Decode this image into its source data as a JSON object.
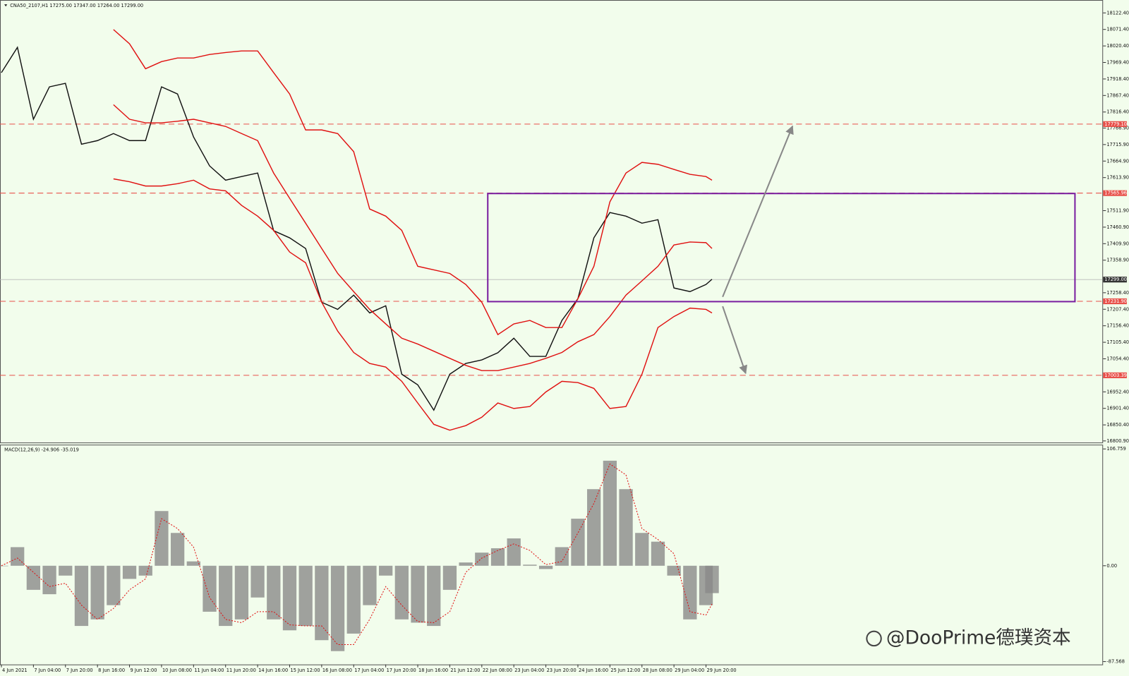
{
  "chart_data": [
    {
      "type": "line",
      "title": "CNA50_2107,H1  17275.00 17347.00 17264.00 17299.00",
      "x": [
        0,
        8,
        16,
        24,
        32,
        40,
        48,
        56,
        64,
        72,
        80,
        88,
        96,
        104,
        112,
        120,
        128,
        136,
        144,
        152,
        160,
        168,
        176,
        184,
        192,
        200,
        208,
        216,
        224,
        232,
        240,
        248,
        256,
        264,
        272,
        280,
        288,
        296,
        304,
        312,
        320,
        328,
        336,
        344,
        352,
        355
      ],
      "xlim": [
        -0.7,
        550
      ],
      "ylim": [
        16796,
        18160
      ],
      "yticks": [
        {
          "value": 18122.4,
          "label": "18122.40"
        },
        {
          "value": 18071.4,
          "label": "18071.40"
        },
        {
          "value": 18020.4,
          "label": "18020.40"
        },
        {
          "value": 17969.4,
          "label": "17969.40"
        },
        {
          "value": 17918.4,
          "label": "17918.40"
        },
        {
          "value": 17867.4,
          "label": "17867.40"
        },
        {
          "value": 17816.4,
          "label": "17816.40"
        },
        {
          "value": 17766.9,
          "label": "17766.90"
        },
        {
          "value": 17715.9,
          "label": "17715.90"
        },
        {
          "value": 17664.9,
          "label": "17664.90"
        },
        {
          "value": 17613.9,
          "label": "17613.90"
        },
        {
          "value": 17511.9,
          "label": "17511.90"
        },
        {
          "value": 17460.9,
          "label": "17460.90"
        },
        {
          "value": 17409.9,
          "label": "17409.90"
        },
        {
          "value": 17358.9,
          "label": "17358.90"
        },
        {
          "value": 17258.4,
          "label": "17258.40"
        },
        {
          "value": 17207.4,
          "label": "17207.40"
        },
        {
          "value": 17156.4,
          "label": "17156.40"
        },
        {
          "value": 17105.4,
          "label": "17105.40"
        },
        {
          "value": 17054.4,
          "label": "17054.40"
        },
        {
          "value": 16952.4,
          "label": "16952.40"
        },
        {
          "value": 16901.4,
          "label": "16901.40"
        },
        {
          "value": 16850.4,
          "label": "16850.40"
        },
        {
          "value": 16800.9,
          "label": "16800.90"
        }
      ],
      "series": [
        {
          "color": "#111111",
          "values": [
            17938,
            18016,
            17794,
            17894,
            17905,
            17717,
            17728,
            17750,
            17728,
            17728,
            17894,
            17872,
            17739,
            17650,
            17606,
            17617,
            17628,
            17450,
            17428,
            17395,
            17229,
            17207,
            17251,
            17196,
            17218,
            17007,
            16974,
            16896,
            17007,
            17040,
            17051,
            17073,
            17118,
            17062,
            17062,
            17173,
            17240,
            17428,
            17506,
            17495,
            17473,
            17484,
            17273,
            17262,
            17284,
            17300
          ]
        },
        {
          "color": "#e01010",
          "values": [
            null,
            null,
            null,
            null,
            null,
            null,
            null,
            18071,
            18027,
            17950,
            17972,
            17983,
            17983,
            17994,
            18000,
            18005,
            18005,
            17938,
            17872,
            17761,
            17761,
            17750,
            17694,
            17517,
            17495,
            17451,
            17340,
            17329,
            17318,
            17284,
            17229,
            17129,
            17162,
            17173,
            17151,
            17151,
            17240,
            17340,
            17539,
            17628,
            17661,
            17655,
            17639,
            17624,
            17617,
            17606
          ]
        },
        {
          "color": "#e01010",
          "values": [
            null,
            null,
            null,
            null,
            null,
            null,
            null,
            17839,
            17794,
            17783,
            17783,
            17788,
            17794,
            17783,
            17772,
            17750,
            17728,
            17628,
            17550,
            17473,
            17395,
            17318,
            17262,
            17207,
            17162,
            17118,
            17100,
            17078,
            17056,
            17034,
            17018,
            17018,
            17029,
            17040,
            17056,
            17074,
            17107,
            17129,
            17185,
            17251,
            17295,
            17340,
            17406,
            17415,
            17413,
            17395
          ]
        },
        {
          "color": "#e01010",
          "values": [
            null,
            null,
            null,
            null,
            null,
            null,
            null,
            17610,
            17601,
            17588,
            17588,
            17595,
            17606,
            17579,
            17573,
            17528,
            17495,
            17451,
            17384,
            17351,
            17229,
            17140,
            17074,
            17040,
            17029,
            16985,
            16918,
            16852,
            16834,
            16848,
            16874,
            16918,
            16901,
            16907,
            16952,
            16985,
            16981,
            16963,
            16901,
            16907,
            17007,
            17151,
            17185,
            17211,
            17207,
            17196
          ]
        }
      ],
      "levels": [
        {
          "value": 17779.1,
          "label": "17779.10"
        },
        {
          "value": 17565.96,
          "label": "17565.96"
        },
        {
          "value": 17231.9,
          "label": "17231.90"
        },
        {
          "value": 17003.39,
          "label": "17003.39"
        }
      ],
      "level_color": "#e8504a",
      "current_price": {
        "value": 17299,
        "label": "17299.00"
      }
    },
    {
      "type": "bar",
      "title": "MACD(12,26,9) -24.906 -35.019",
      "x": [
        0,
        8,
        16,
        24,
        32,
        40,
        48,
        56,
        64,
        72,
        80,
        88,
        96,
        104,
        112,
        120,
        128,
        136,
        144,
        152,
        160,
        168,
        176,
        184,
        192,
        200,
        208,
        216,
        224,
        232,
        240,
        248,
        256,
        264,
        272,
        280,
        288,
        296,
        304,
        312,
        320,
        328,
        336,
        344,
        352,
        355
      ],
      "xlim": [
        -0.7,
        550
      ],
      "xticks": [
        {
          "value": 0,
          "label": "4 Jun 2021"
        },
        {
          "value": 16,
          "label": "7 Jun 04:00"
        },
        {
          "value": 32,
          "label": "7 Jun 20:00"
        },
        {
          "value": 48,
          "label": "8 Jun 16:00"
        },
        {
          "value": 64,
          "label": "9 Jun 12:00"
        },
        {
          "value": 80,
          "label": "10 Jun 08:00"
        },
        {
          "value": 96,
          "label": "11 Jun 04:00"
        },
        {
          "value": 112,
          "label": "11 Jun 20:00"
        },
        {
          "value": 128,
          "label": "14 Jun 16:00"
        },
        {
          "value": 144,
          "label": "15 Jun 12:00"
        },
        {
          "value": 160,
          "label": "16 Jun 08:00"
        },
        {
          "value": 176,
          "label": "17 Jun 04:00"
        },
        {
          "value": 192,
          "label": "17 Jun 20:00"
        },
        {
          "value": 208,
          "label": "18 Jun 16:00"
        },
        {
          "value": 224,
          "label": "21 Jun 12:00"
        },
        {
          "value": 240,
          "label": "22 Jun 08:00"
        },
        {
          "value": 256,
          "label": "23 Jun 04:00"
        },
        {
          "value": 272,
          "label": "23 Jun 20:00"
        },
        {
          "value": 288,
          "label": "24 Jun 16:00"
        },
        {
          "value": 304,
          "label": "25 Jun 12:00"
        },
        {
          "value": 320,
          "label": "28 Jun 08:00"
        },
        {
          "value": 336,
          "label": "29 Jun 04:00"
        },
        {
          "value": 352,
          "label": "29 Jun 20:00"
        }
      ],
      "ylim": [
        -90.2,
        110
      ],
      "yticks": [
        106.759,
        {
          "value": 0,
          "label": "0.00"
        },
        -87.568
      ],
      "series": [
        {
          "type": "bar",
          "color": "#8a8a8a",
          "values": [
            0,
            17,
            -22,
            -26,
            -9,
            -55,
            -49,
            -36,
            -12,
            -9,
            50,
            30,
            4,
            -42,
            -55,
            -49,
            -29,
            -49,
            -59,
            -55,
            -68,
            -78,
            -62,
            -36,
            -9,
            -49,
            -52,
            -55,
            -22,
            3,
            12,
            16,
            25,
            1,
            -3,
            17,
            43,
            70,
            96,
            70,
            30,
            22,
            -9,
            -49,
            -36,
            -25
          ]
        },
        {
          "type": "line",
          "color": "#e01010",
          "dashed": true,
          "values": [
            0,
            7,
            -6,
            -19,
            -16,
            -36,
            -49,
            -39,
            -22,
            -12,
            43,
            34,
            17,
            -29,
            -49,
            -52,
            -42,
            -42,
            -54,
            -55,
            -55,
            -72,
            -72,
            -49,
            -19,
            -36,
            -51,
            -52,
            -42,
            -6,
            7,
            14,
            20,
            14,
            1,
            4,
            30,
            57,
            93,
            83,
            34,
            24,
            11,
            -42,
            -45,
            -35
          ]
        }
      ]
    }
  ],
  "watermark": "@DooPrime德璞资本"
}
